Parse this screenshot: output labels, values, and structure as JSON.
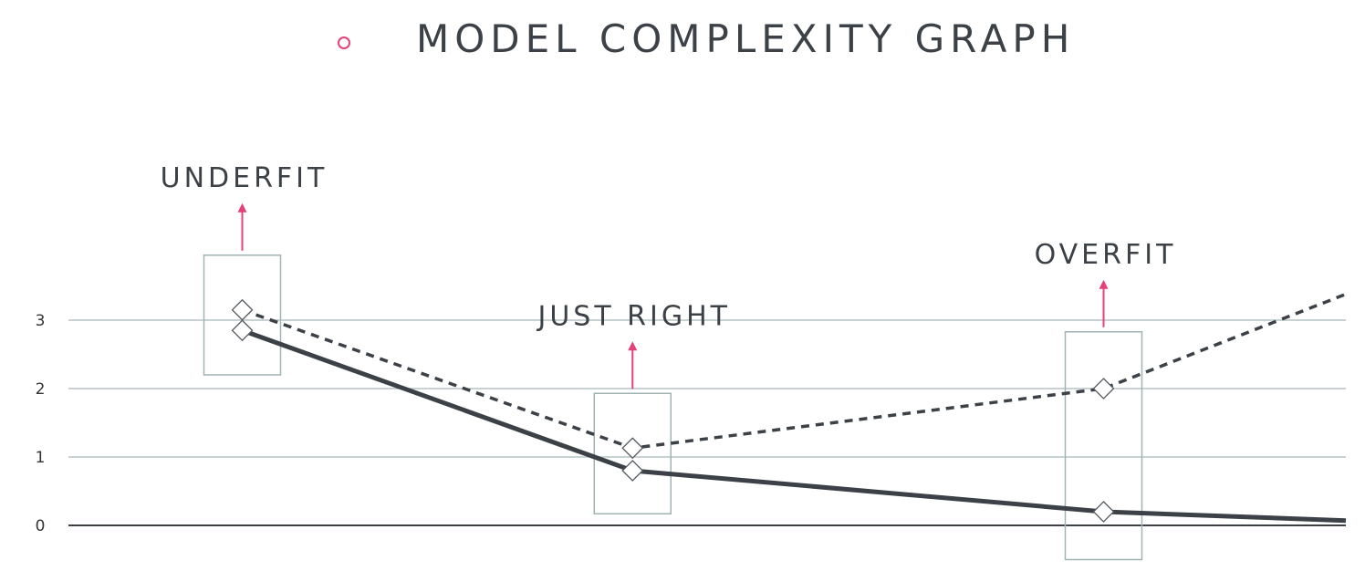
{
  "title": "MODEL COMPLEXITY GRAPH",
  "colors": {
    "accent": "#e4407a",
    "line": "#3b4146",
    "grid": "#b5c4c4",
    "box": "#9fb3b3",
    "text": "#3b4146"
  },
  "chart_data": {
    "type": "line",
    "title": "MODEL COMPLEXITY GRAPH",
    "xlabel": "",
    "ylabel": "",
    "ylim": [
      0,
      3.5
    ],
    "xlim": [
      0,
      1
    ],
    "yticks": [
      "0",
      "1",
      "2",
      "3"
    ],
    "grid": true,
    "series": [
      {
        "style": "dashed",
        "x": [
          0.18,
          0.47,
          0.82,
          1.0
        ],
        "y": [
          3.15,
          1.13,
          2.0,
          3.38
        ],
        "markers": [
          0,
          1,
          2
        ]
      },
      {
        "style": "solid",
        "x": [
          0.18,
          0.47,
          0.82,
          1.0
        ],
        "y": [
          2.85,
          0.8,
          0.2,
          0.07
        ],
        "markers": [
          0,
          1,
          2
        ]
      }
    ],
    "annotations": [
      {
        "label": "UNDERFIT",
        "x": 0.18,
        "box_y": [
          2.2,
          3.95
        ],
        "arrow_up": true
      },
      {
        "label": "JUST RIGHT",
        "x": 0.47,
        "box_y": [
          0.17,
          1.93
        ],
        "arrow_up": true
      },
      {
        "label": "OVERFIT",
        "x": 0.82,
        "box_y": [
          -0.5,
          2.83
        ],
        "arrow_up": true
      }
    ]
  }
}
